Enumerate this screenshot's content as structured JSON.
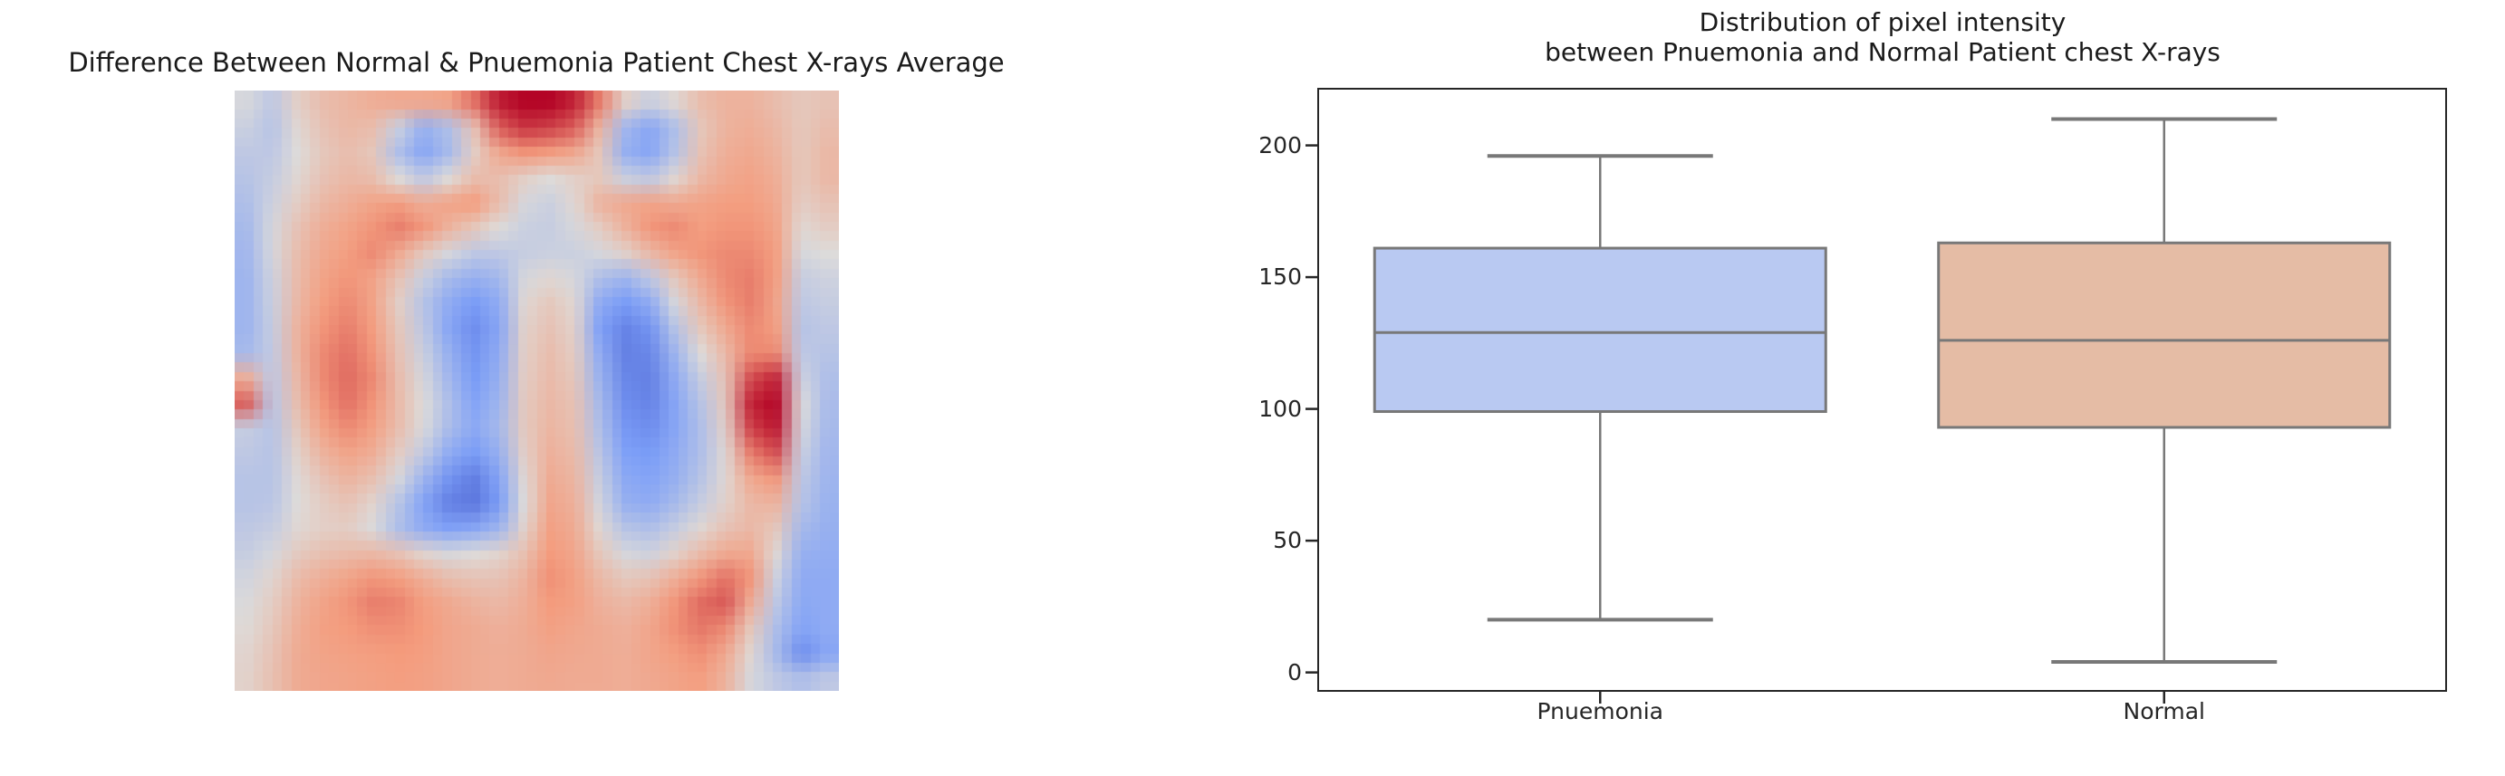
{
  "figure": {
    "background": "#ffffff"
  },
  "left_panel": {
    "title": "Difference Between Normal & Pnuemonia Patient Chest X-rays Average",
    "heatmap": {
      "colormap": "coolwarm",
      "colormap_anchors": [
        "#3b4cc0",
        "#7c9ff9",
        "#dedcda",
        "#f59c7d",
        "#b40426"
      ],
      "grid": [
        [
          0.48,
          0.42,
          0.55,
          0.62,
          0.65,
          0.68,
          0.7,
          0.7,
          0.72,
          0.82,
          0.96,
          1.0,
          1.0,
          0.95,
          0.8,
          0.55,
          0.45,
          0.52,
          0.62,
          0.66,
          0.66,
          0.62,
          0.58,
          0.6
        ],
        [
          0.45,
          0.4,
          0.52,
          0.6,
          0.64,
          0.62,
          0.45,
          0.32,
          0.38,
          0.6,
          0.85,
          0.92,
          0.9,
          0.85,
          0.65,
          0.35,
          0.28,
          0.38,
          0.58,
          0.66,
          0.68,
          0.64,
          0.58,
          0.62
        ],
        [
          0.42,
          0.42,
          0.5,
          0.58,
          0.62,
          0.58,
          0.38,
          0.28,
          0.36,
          0.55,
          0.7,
          0.76,
          0.74,
          0.7,
          0.58,
          0.32,
          0.28,
          0.4,
          0.6,
          0.68,
          0.7,
          0.66,
          0.58,
          0.64
        ],
        [
          0.4,
          0.44,
          0.52,
          0.6,
          0.64,
          0.62,
          0.5,
          0.42,
          0.5,
          0.62,
          0.62,
          0.55,
          0.5,
          0.55,
          0.58,
          0.45,
          0.42,
          0.52,
          0.64,
          0.7,
          0.72,
          0.68,
          0.58,
          0.64
        ],
        [
          0.38,
          0.46,
          0.56,
          0.64,
          0.68,
          0.72,
          0.74,
          0.68,
          0.72,
          0.75,
          0.62,
          0.48,
          0.45,
          0.52,
          0.66,
          0.7,
          0.72,
          0.7,
          0.72,
          0.74,
          0.74,
          0.7,
          0.56,
          0.6
        ],
        [
          0.36,
          0.48,
          0.6,
          0.68,
          0.72,
          0.76,
          0.8,
          0.76,
          0.66,
          0.58,
          0.5,
          0.45,
          0.44,
          0.48,
          0.56,
          0.66,
          0.76,
          0.78,
          0.74,
          0.76,
          0.76,
          0.72,
          0.52,
          0.56
        ],
        [
          0.35,
          0.48,
          0.62,
          0.7,
          0.74,
          0.78,
          0.7,
          0.58,
          0.48,
          0.42,
          0.42,
          0.44,
          0.45,
          0.45,
          0.48,
          0.54,
          0.64,
          0.72,
          0.76,
          0.78,
          0.78,
          0.74,
          0.48,
          0.5
        ],
        [
          0.34,
          0.46,
          0.63,
          0.72,
          0.76,
          0.72,
          0.6,
          0.45,
          0.36,
          0.32,
          0.35,
          0.48,
          0.52,
          0.48,
          0.38,
          0.34,
          0.42,
          0.58,
          0.7,
          0.78,
          0.8,
          0.74,
          0.44,
          0.46
        ],
        [
          0.34,
          0.45,
          0.64,
          0.74,
          0.78,
          0.72,
          0.55,
          0.4,
          0.3,
          0.24,
          0.3,
          0.52,
          0.58,
          0.52,
          0.3,
          0.24,
          0.3,
          0.48,
          0.64,
          0.76,
          0.8,
          0.72,
          0.42,
          0.44
        ],
        [
          0.34,
          0.44,
          0.66,
          0.76,
          0.8,
          0.74,
          0.58,
          0.42,
          0.28,
          0.2,
          0.28,
          0.54,
          0.6,
          0.54,
          0.26,
          0.17,
          0.22,
          0.4,
          0.58,
          0.7,
          0.78,
          0.74,
          0.4,
          0.42
        ],
        [
          0.36,
          0.43,
          0.66,
          0.78,
          0.82,
          0.76,
          0.6,
          0.45,
          0.32,
          0.22,
          0.3,
          0.55,
          0.62,
          0.56,
          0.3,
          0.16,
          0.18,
          0.34,
          0.5,
          0.64,
          0.78,
          0.78,
          0.42,
          0.4
        ],
        [
          0.68,
          0.42,
          0.64,
          0.78,
          0.83,
          0.78,
          0.62,
          0.48,
          0.35,
          0.24,
          0.32,
          0.56,
          0.63,
          0.58,
          0.33,
          0.18,
          0.16,
          0.3,
          0.44,
          0.6,
          0.88,
          0.95,
          0.46,
          0.38
        ],
        [
          0.85,
          0.41,
          0.62,
          0.76,
          0.82,
          0.76,
          0.63,
          0.5,
          0.38,
          0.27,
          0.34,
          0.57,
          0.64,
          0.6,
          0.36,
          0.2,
          0.17,
          0.28,
          0.4,
          0.58,
          0.95,
          1.0,
          0.5,
          0.37
        ],
        [
          0.44,
          0.4,
          0.58,
          0.72,
          0.78,
          0.73,
          0.62,
          0.49,
          0.37,
          0.29,
          0.36,
          0.57,
          0.65,
          0.61,
          0.38,
          0.23,
          0.2,
          0.28,
          0.38,
          0.55,
          0.9,
          0.97,
          0.48,
          0.36
        ],
        [
          0.42,
          0.4,
          0.54,
          0.66,
          0.72,
          0.68,
          0.56,
          0.43,
          0.3,
          0.24,
          0.32,
          0.55,
          0.67,
          0.63,
          0.41,
          0.26,
          0.24,
          0.3,
          0.38,
          0.52,
          0.8,
          0.88,
          0.45,
          0.35
        ],
        [
          0.4,
          0.4,
          0.51,
          0.6,
          0.66,
          0.61,
          0.48,
          0.34,
          0.22,
          0.15,
          0.27,
          0.52,
          0.69,
          0.65,
          0.44,
          0.29,
          0.27,
          0.32,
          0.4,
          0.52,
          0.7,
          0.76,
          0.42,
          0.34
        ],
        [
          0.4,
          0.41,
          0.5,
          0.56,
          0.6,
          0.53,
          0.4,
          0.27,
          0.16,
          0.13,
          0.24,
          0.5,
          0.71,
          0.67,
          0.47,
          0.32,
          0.3,
          0.36,
          0.44,
          0.54,
          0.64,
          0.66,
          0.4,
          0.33
        ],
        [
          0.42,
          0.44,
          0.52,
          0.55,
          0.56,
          0.49,
          0.38,
          0.3,
          0.26,
          0.28,
          0.34,
          0.54,
          0.73,
          0.69,
          0.52,
          0.4,
          0.38,
          0.44,
          0.52,
          0.6,
          0.64,
          0.58,
          0.36,
          0.32
        ],
        [
          0.44,
          0.48,
          0.57,
          0.61,
          0.63,
          0.64,
          0.6,
          0.53,
          0.48,
          0.5,
          0.53,
          0.61,
          0.75,
          0.71,
          0.58,
          0.48,
          0.46,
          0.54,
          0.63,
          0.7,
          0.7,
          0.52,
          0.32,
          0.31
        ],
        [
          0.47,
          0.53,
          0.63,
          0.68,
          0.72,
          0.76,
          0.74,
          0.68,
          0.62,
          0.6,
          0.6,
          0.66,
          0.77,
          0.73,
          0.64,
          0.58,
          0.6,
          0.68,
          0.76,
          0.82,
          0.76,
          0.46,
          0.3,
          0.3
        ],
        [
          0.49,
          0.56,
          0.66,
          0.72,
          0.76,
          0.8,
          0.79,
          0.74,
          0.7,
          0.66,
          0.64,
          0.68,
          0.75,
          0.73,
          0.67,
          0.64,
          0.68,
          0.76,
          0.83,
          0.86,
          0.68,
          0.42,
          0.29,
          0.3
        ],
        [
          0.51,
          0.58,
          0.68,
          0.73,
          0.75,
          0.77,
          0.77,
          0.75,
          0.71,
          0.69,
          0.67,
          0.69,
          0.73,
          0.71,
          0.69,
          0.67,
          0.71,
          0.77,
          0.81,
          0.78,
          0.58,
          0.38,
          0.27,
          0.3
        ],
        [
          0.53,
          0.6,
          0.69,
          0.72,
          0.73,
          0.74,
          0.75,
          0.74,
          0.71,
          0.69,
          0.68,
          0.69,
          0.71,
          0.7,
          0.69,
          0.68,
          0.71,
          0.74,
          0.77,
          0.7,
          0.52,
          0.36,
          0.2,
          0.28
        ],
        [
          0.54,
          0.61,
          0.69,
          0.71,
          0.72,
          0.73,
          0.74,
          0.73,
          0.71,
          0.69,
          0.68,
          0.69,
          0.7,
          0.69,
          0.69,
          0.68,
          0.7,
          0.72,
          0.74,
          0.66,
          0.48,
          0.42,
          0.38,
          0.42
        ]
      ]
    }
  },
  "chart_data": {
    "type": "boxplot",
    "title_line1": "Distribution of pixel intensity",
    "title_line2": "between Pnuemonia and Normal Patient chest X-rays",
    "categories": [
      "Pnuemonia",
      "Normal"
    ],
    "series": [
      {
        "name": "Pnuemonia",
        "whisker_low": 20,
        "q1": 99,
        "median": 129,
        "q3": 161,
        "whisker_high": 196,
        "fill_color": "#b9c9f2"
      },
      {
        "name": "Normal",
        "whisker_low": 4,
        "q1": 93,
        "median": 126,
        "q3": 163,
        "whisker_high": 210,
        "fill_color": "#e5bca5"
      }
    ],
    "yticks": [
      0,
      50,
      100,
      150,
      200
    ],
    "ylim": [
      -7,
      221.5
    ],
    "xlim": [
      0.5,
      2.5
    ],
    "box_width": 0.8,
    "cap_width": 0.4,
    "edge_color": "#787878",
    "axis_color": "#262626",
    "grid": "off",
    "legend": "none"
  }
}
